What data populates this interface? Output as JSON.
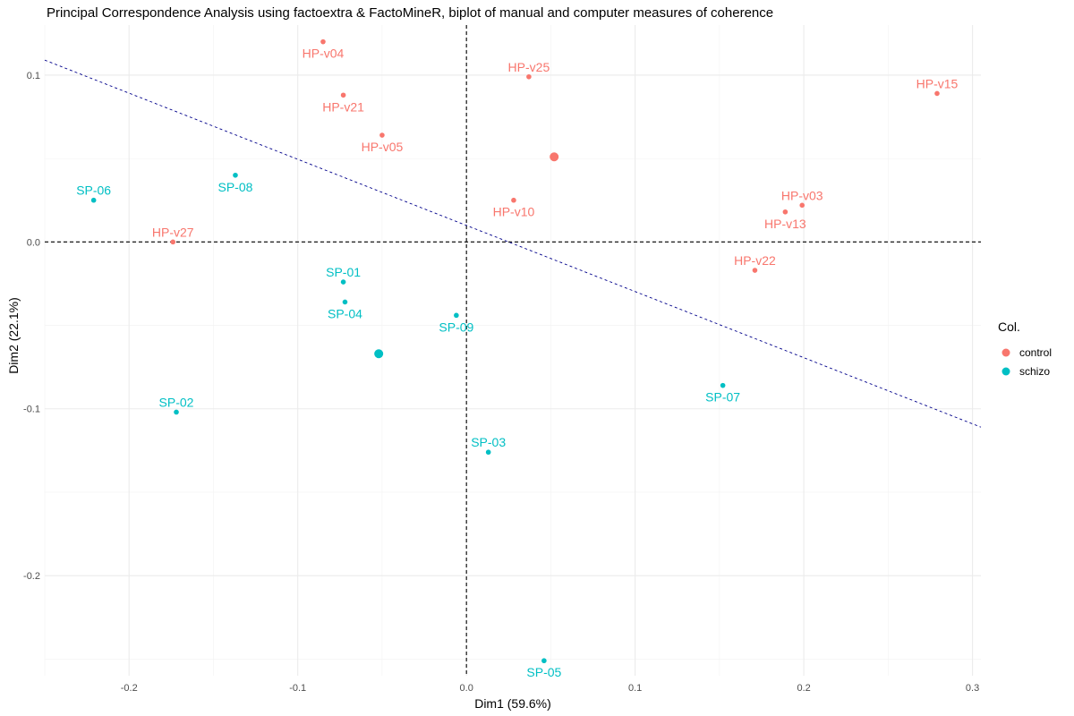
{
  "chart_data": {
    "type": "scatter",
    "title": "Principal Correspondence Analysis using factoextra & FactoMineR, biplot of manual and computer measures of coherence",
    "xlabel": "Dim1 (59.6%)",
    "ylabel": "Dim2 (22.1%)",
    "xlim": [
      -0.25,
      0.305
    ],
    "ylim": [
      -0.26,
      0.13
    ],
    "x_ticks": [
      -0.2,
      -0.1,
      0.0,
      0.1,
      0.2,
      0.3
    ],
    "x_tick_labels": [
      "-0.2",
      "-0.1",
      "0.0",
      "0.1",
      "0.2",
      "0.3"
    ],
    "y_ticks": [
      -0.2,
      -0.1,
      0.0,
      0.1
    ],
    "y_tick_labels": [
      "-0.2",
      "-0.1",
      "0.0",
      "0.1"
    ],
    "grid": true,
    "legend": {
      "title": "Col.",
      "position": "right",
      "entries": [
        {
          "label": "control",
          "color": "#F8766D"
        },
        {
          "label": "schizo",
          "color": "#00BFC4"
        }
      ]
    },
    "series": [
      {
        "name": "control",
        "color": "#F8766D",
        "points": [
          {
            "label": "HP-v04",
            "x": -0.085,
            "y": 0.12
          },
          {
            "label": "HP-v25",
            "x": 0.037,
            "y": 0.099
          },
          {
            "label": "HP-v15",
            "x": 0.279,
            "y": 0.089
          },
          {
            "label": "HP-v21",
            "x": -0.073,
            "y": 0.088
          },
          {
            "label": "HP-v05",
            "x": -0.05,
            "y": 0.064
          },
          {
            "label": "HP-v10",
            "x": 0.028,
            "y": 0.025
          },
          {
            "label": "HP-v03",
            "x": 0.199,
            "y": 0.022
          },
          {
            "label": "HP-v13",
            "x": 0.189,
            "y": 0.018
          },
          {
            "label": "HP-v27",
            "x": -0.174,
            "y": 0.0
          },
          {
            "label": "HP-v22",
            "x": 0.171,
            "y": -0.017
          }
        ],
        "centroid": {
          "x": 0.052,
          "y": 0.051
        }
      },
      {
        "name": "schizo",
        "color": "#00BFC4",
        "points": [
          {
            "label": "SP-06",
            "x": -0.221,
            "y": 0.025
          },
          {
            "label": "SP-08",
            "x": -0.137,
            "y": 0.04
          },
          {
            "label": "SP-01",
            "x": -0.073,
            "y": -0.024
          },
          {
            "label": "SP-04",
            "x": -0.072,
            "y": -0.036
          },
          {
            "label": "SP-09",
            "x": -0.006,
            "y": -0.044
          },
          {
            "label": "SP-02",
            "x": -0.172,
            "y": -0.102
          },
          {
            "label": "SP-07",
            "x": 0.152,
            "y": -0.086
          },
          {
            "label": "SP-03",
            "x": 0.013,
            "y": -0.126
          },
          {
            "label": "SP-05",
            "x": 0.046,
            "y": -0.251
          }
        ],
        "centroid": {
          "x": -0.052,
          "y": -0.067
        }
      }
    ],
    "reference_lines": [
      {
        "kind": "vertical",
        "x": 0.0,
        "color": "#000000",
        "style": "dashed"
      },
      {
        "kind": "horizontal",
        "y": 0.0,
        "color": "#000000",
        "style": "dashed"
      },
      {
        "kind": "line",
        "from": {
          "x": -0.25,
          "y": 0.109
        },
        "to": {
          "x": 0.305,
          "y": -0.111
        },
        "color": "#00008B",
        "style": "dashed"
      }
    ]
  }
}
